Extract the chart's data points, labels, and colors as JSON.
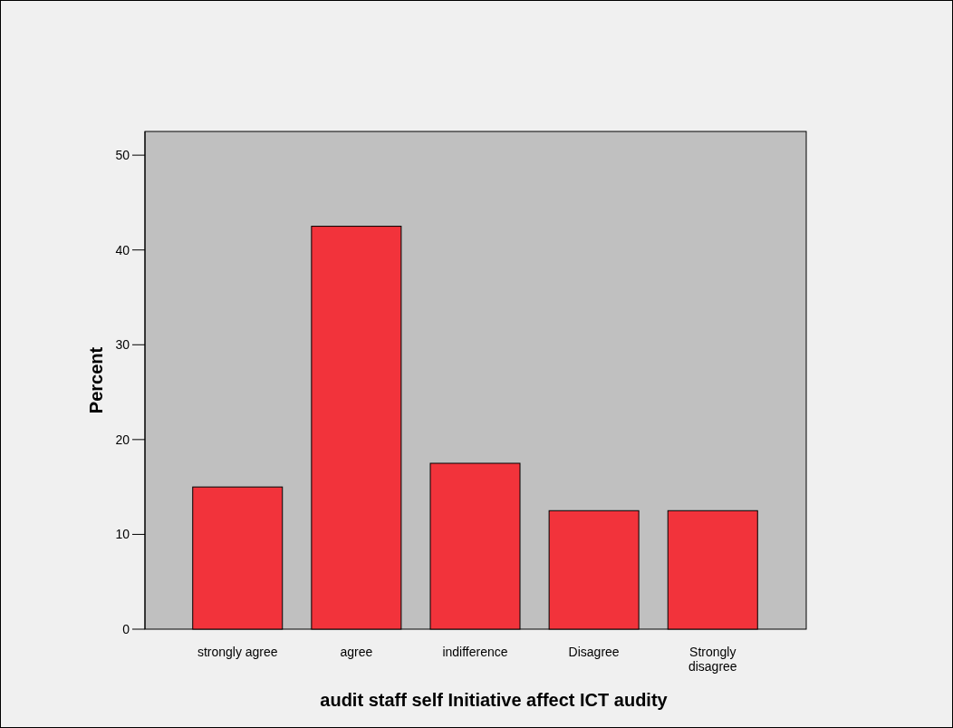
{
  "chart_data": {
    "type": "bar",
    "xlabel": "audit staff self Initiative affect ICT audity",
    "ylabel": "Percent",
    "categories": [
      "strongly agree",
      "agree",
      "indifference",
      "Disagree",
      "Strongly disagree"
    ],
    "values": [
      15,
      42.5,
      17.5,
      12.5,
      12.5
    ],
    "color": "#f2333b",
    "ylim": [
      0,
      52.5
    ],
    "yticks": [
      0,
      10,
      20,
      30,
      40,
      50
    ],
    "grid": false
  }
}
